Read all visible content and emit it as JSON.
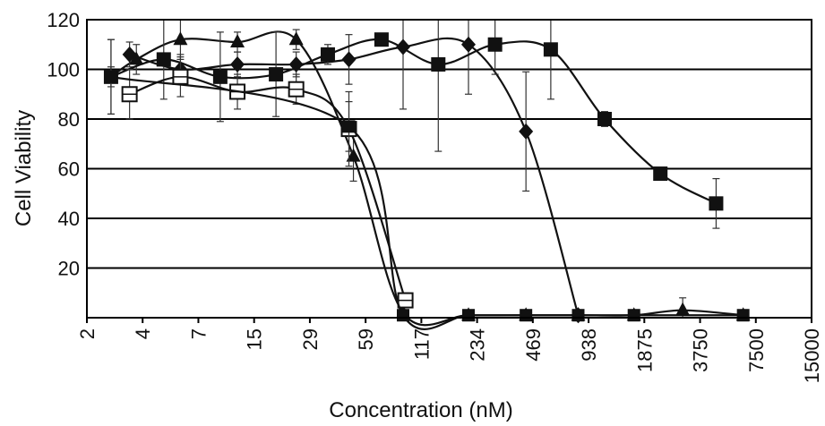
{
  "chart_data": {
    "type": "line",
    "title": "",
    "xlabel": "Concentration (nM)",
    "ylabel": "Cell Viability",
    "x_scale": "log2",
    "x_ticks": [
      "2",
      "4",
      "7",
      "15",
      "29",
      "59",
      "117",
      "234",
      "469",
      "938",
      "1875",
      "3750",
      "7500",
      "15000"
    ],
    "y_ticks": [
      "20",
      "40",
      "60",
      "80",
      "100",
      "120"
    ],
    "ylim": [
      0,
      120
    ],
    "grid": "horizontal",
    "legend": "none",
    "series": [
      {
        "marker": "filled-triangle",
        "points": [
          {
            "x": 2.7,
            "y": 97,
            "err": 15
          },
          {
            "x": 3.7,
            "y": 104,
            "err": 6
          },
          {
            "x": 6.4,
            "y": 112,
            "err": 8
          },
          {
            "x": 13,
            "y": 111,
            "err": 4
          },
          {
            "x": 27,
            "y": 112,
            "err": 4
          },
          {
            "x": 55,
            "y": 65,
            "err": 10
          },
          {
            "x": 102,
            "y": 2,
            "err": 2
          },
          {
            "x": 230,
            "y": 1,
            "err": 1
          },
          {
            "x": 470,
            "y": 1,
            "err": 1
          },
          {
            "x": 900,
            "y": 1,
            "err": 1
          },
          {
            "x": 1800,
            "y": 1,
            "err": 1
          },
          {
            "x": 3300,
            "y": 3,
            "err": 5
          },
          {
            "x": 7000,
            "y": 1,
            "err": 1
          }
        ]
      },
      {
        "marker": "filled-diamond",
        "points": [
          {
            "x": 3.4,
            "y": 106,
            "err": 5
          },
          {
            "x": 6.4,
            "y": 100,
            "err": 6
          },
          {
            "x": 13,
            "y": 102,
            "err": 5
          },
          {
            "x": 27,
            "y": 102,
            "err": 5
          },
          {
            "x": 52,
            "y": 104,
            "err": 10
          },
          {
            "x": 102,
            "y": 109,
            "err": 25
          },
          {
            "x": 230,
            "y": 110,
            "err": 20
          },
          {
            "x": 470,
            "y": 75,
            "err": 24
          },
          {
            "x": 900,
            "y": 1,
            "err": 1
          }
        ]
      },
      {
        "marker": "filled-square",
        "points": [
          {
            "x": 2.7,
            "y": 97,
            "err": 15
          },
          {
            "x": 5.2,
            "y": 104,
            "err": 16
          },
          {
            "x": 10.5,
            "y": 97,
            "err": 18
          },
          {
            "x": 21,
            "y": 98,
            "err": 17
          },
          {
            "x": 40,
            "y": 106,
            "err": 4
          },
          {
            "x": 78,
            "y": 112,
            "err": 2
          },
          {
            "x": 158,
            "y": 102,
            "err": 35
          },
          {
            "x": 320,
            "y": 110,
            "err": 12
          },
          {
            "x": 640,
            "y": 108,
            "err": 20
          },
          {
            "x": 1250,
            "y": 80,
            "err": 3
          },
          {
            "x": 2500,
            "y": 58,
            "err": 2
          },
          {
            "x": 5000,
            "y": 46,
            "err": 10
          }
        ]
      },
      {
        "marker": "open-square",
        "points": [
          {
            "x": 3.4,
            "y": 90,
            "err": 10
          },
          {
            "x": 6.4,
            "y": 97,
            "err": 8
          },
          {
            "x": 13,
            "y": 91,
            "err": 7
          },
          {
            "x": 27,
            "y": 92,
            "err": 6
          },
          {
            "x": 52,
            "y": 76,
            "err": 15
          },
          {
            "x": 105,
            "y": 7,
            "err": 3
          }
        ]
      },
      {
        "marker": "filled-square-small",
        "points": [
          {
            "x": 2.7,
            "y": 97,
            "err": 4
          },
          {
            "x": 52,
            "y": 77,
            "err": 10
          },
          {
            "x": 102,
            "y": 1,
            "err": 1
          },
          {
            "x": 230,
            "y": 1,
            "err": 1
          },
          {
            "x": 470,
            "y": 1,
            "err": 1
          },
          {
            "x": 900,
            "y": 1,
            "err": 1
          },
          {
            "x": 1800,
            "y": 1,
            "err": 1
          },
          {
            "x": 7000,
            "y": 1,
            "err": 1
          }
        ]
      }
    ]
  }
}
